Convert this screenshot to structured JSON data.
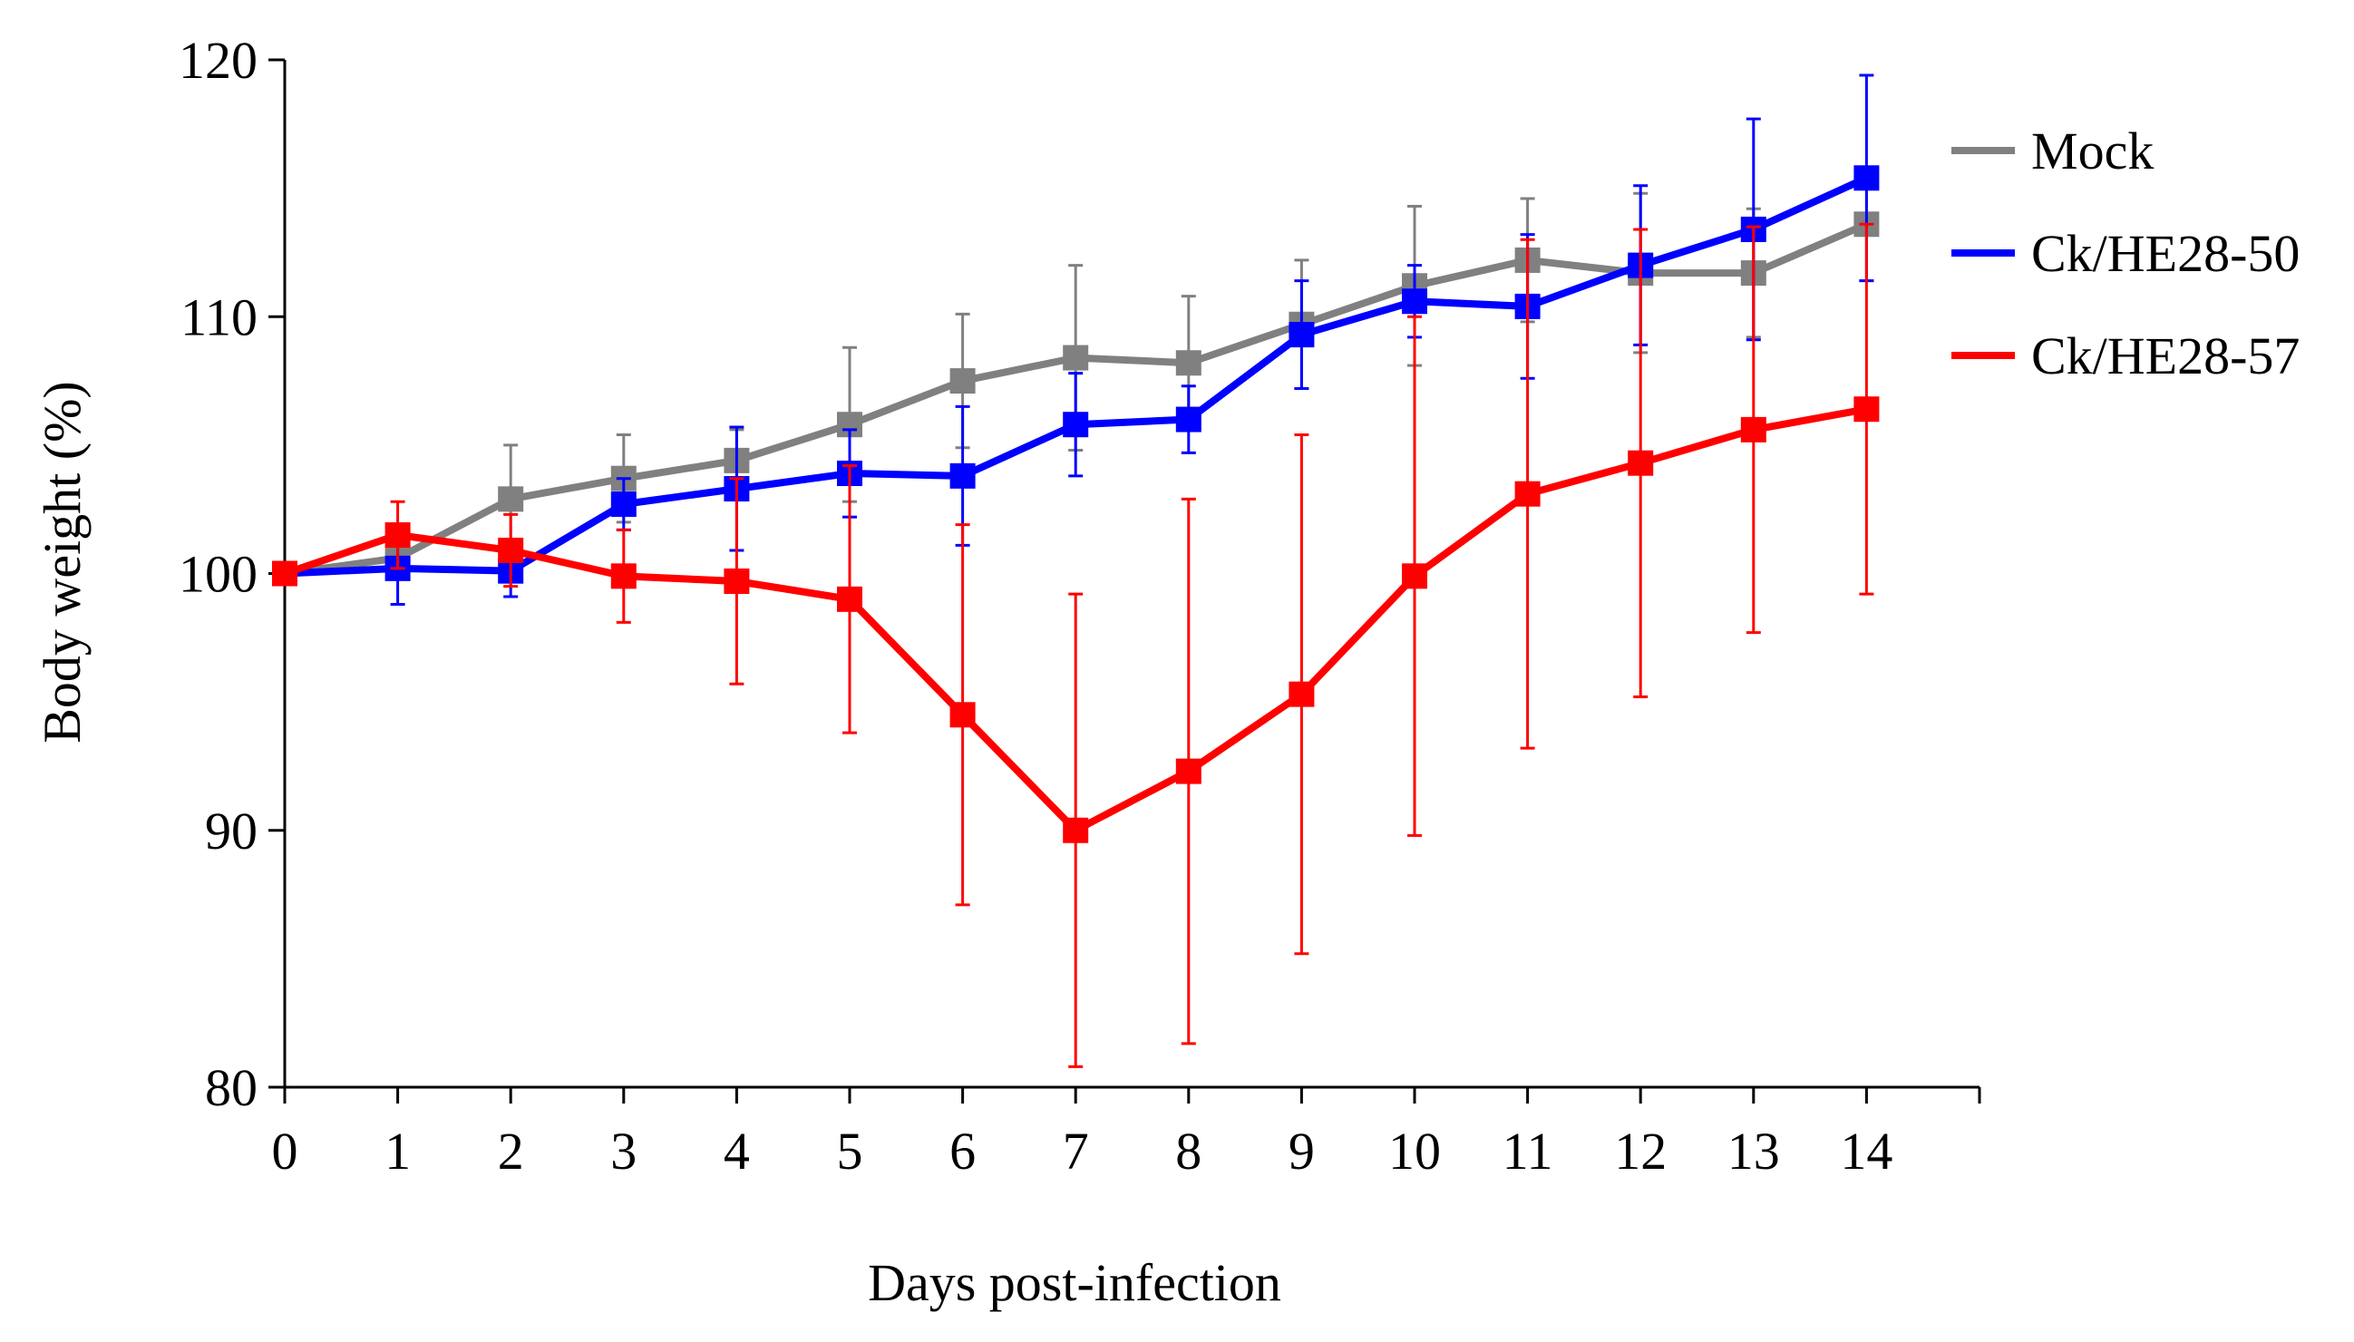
{
  "chart_data": {
    "type": "line",
    "title": "",
    "xlabel": "Days post-infection",
    "ylabel": "Body weight (%)",
    "x": [
      0,
      1,
      2,
      3,
      4,
      5,
      6,
      7,
      8,
      9,
      10,
      11,
      12,
      13,
      14
    ],
    "xlim": [
      0,
      15
    ],
    "ylim": [
      80,
      120
    ],
    "yticks": [
      80,
      90,
      100,
      110,
      120
    ],
    "legend_position": "top-right",
    "grid": false,
    "series": [
      {
        "name": "Mock",
        "color": "#808080",
        "values": [
          100,
          100.6,
          102.9,
          103.7,
          104.4,
          105.8,
          107.5,
          108.4,
          108.2,
          109.7,
          111.2,
          112.2,
          111.7,
          111.7,
          113.6
        ],
        "errors": [
          0,
          0,
          2.1,
          1.7,
          1.2,
          3.0,
          2.6,
          3.6,
          2.6,
          2.5,
          3.1,
          2.4,
          3.1,
          2.5,
          2.2
        ]
      },
      {
        "name": "Ck/HE28-50",
        "color": "#0000ff",
        "values": [
          100,
          100.2,
          100.1,
          102.7,
          103.3,
          103.9,
          103.8,
          105.8,
          106.0,
          109.3,
          110.6,
          110.4,
          112.0,
          113.4,
          115.4
        ],
        "errors": [
          0,
          1.4,
          1.0,
          1.0,
          2.4,
          1.7,
          2.7,
          2.0,
          1.3,
          2.1,
          1.4,
          2.8,
          3.1,
          4.3,
          4.0
        ]
      },
      {
        "name": "Ck/HE28-57",
        "color": "#ff0000",
        "values": [
          100,
          101.5,
          100.9,
          99.9,
          99.7,
          99.0,
          94.5,
          90.0,
          92.3,
          95.3,
          99.9,
          103.1,
          104.3,
          105.6,
          106.4
        ],
        "errors": [
          0,
          1.3,
          1.4,
          1.8,
          4.0,
          5.2,
          7.4,
          9.2,
          10.6,
          10.1,
          10.1,
          9.9,
          9.1,
          7.9,
          7.2
        ]
      }
    ]
  }
}
